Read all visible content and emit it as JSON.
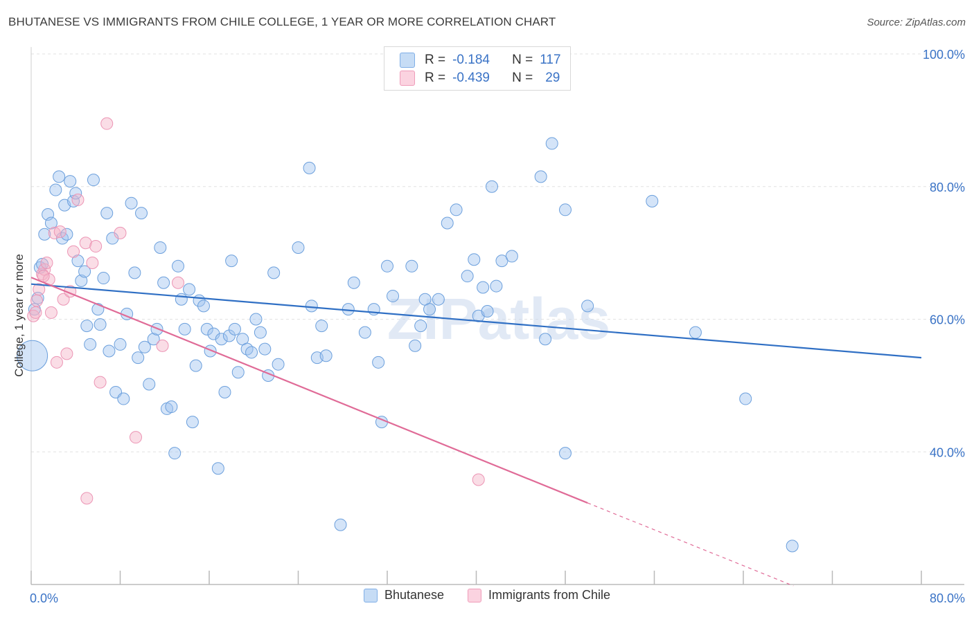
{
  "title": "BHUTANESE VS IMMIGRANTS FROM CHILE COLLEGE, 1 YEAR OR MORE CORRELATION CHART",
  "source": "Source: ZipAtlas.com",
  "watermark": "ZIPatlas",
  "stats": [
    {
      "r_label": "R =",
      "r_value": "-0.184",
      "n_label": "N =",
      "n_value": "117",
      "color": "#9fc3ef"
    },
    {
      "r_label": "R =",
      "r_value": "-0.439",
      "n_label": "N =",
      "n_value": "29",
      "color": "#f5b3c8"
    }
  ],
  "chart_data": {
    "type": "scatter",
    "title": "BHUTANESE VS IMMIGRANTS FROM CHILE COLLEGE, 1 YEAR OR MORE CORRELATION CHART",
    "xlabel": "",
    "ylabel": "College, 1 year or more",
    "xlim": [
      0,
      80
    ],
    "ylim": [
      20,
      100
    ],
    "x_tick_labels": [
      "0.0%",
      "80.0%"
    ],
    "y_ticks": [
      40,
      60,
      80,
      100
    ],
    "y_tick_labels": [
      "40.0%",
      "60.0%",
      "80.0%",
      "100.0%"
    ],
    "grid": true,
    "legend_position": "bottom",
    "series": [
      {
        "name": "Bhutanese",
        "color": "#9fc3ef",
        "line_color": "#2f6fc4",
        "trend": {
          "x": [
            0,
            80
          ],
          "y": [
            65.3,
            54.2
          ]
        },
        "points": [
          [
            0.3,
            61.5
          ],
          [
            0.6,
            63.2
          ],
          [
            0.8,
            67.8
          ],
          [
            1.0,
            68.3
          ],
          [
            1.2,
            72.8
          ],
          [
            1.5,
            75.8
          ],
          [
            1.8,
            74.5
          ],
          [
            2.2,
            79.5
          ],
          [
            2.5,
            81.5
          ],
          [
            2.8,
            72.2
          ],
          [
            3.0,
            77.2
          ],
          [
            3.2,
            72.8
          ],
          [
            3.5,
            80.8
          ],
          [
            3.8,
            77.8
          ],
          [
            4.0,
            79.0
          ],
          [
            4.2,
            68.8
          ],
          [
            4.5,
            65.8
          ],
          [
            4.8,
            67.2
          ],
          [
            5.0,
            59.0
          ],
          [
            5.3,
            56.2
          ],
          [
            5.6,
            81.0
          ],
          [
            6.0,
            61.5
          ],
          [
            6.2,
            59.2
          ],
          [
            6.5,
            66.2
          ],
          [
            6.8,
            76.0
          ],
          [
            7.0,
            55.2
          ],
          [
            7.3,
            72.2
          ],
          [
            7.6,
            49.0
          ],
          [
            8.0,
            56.2
          ],
          [
            8.3,
            48.0
          ],
          [
            8.6,
            60.8
          ],
          [
            9.0,
            77.5
          ],
          [
            9.3,
            67.0
          ],
          [
            9.6,
            54.2
          ],
          [
            9.9,
            76.0
          ],
          [
            10.2,
            55.8
          ],
          [
            10.6,
            50.2
          ],
          [
            11.0,
            57.0
          ],
          [
            11.3,
            58.5
          ],
          [
            11.6,
            70.8
          ],
          [
            11.9,
            65.5
          ],
          [
            12.2,
            46.5
          ],
          [
            12.6,
            46.8
          ],
          [
            12.9,
            39.8
          ],
          [
            13.2,
            68.0
          ],
          [
            13.5,
            63.0
          ],
          [
            13.8,
            58.5
          ],
          [
            14.2,
            64.5
          ],
          [
            14.5,
            44.5
          ],
          [
            14.8,
            53.0
          ],
          [
            15.1,
            62.8
          ],
          [
            15.5,
            62.0
          ],
          [
            15.8,
            58.5
          ],
          [
            16.1,
            55.2
          ],
          [
            16.4,
            57.8
          ],
          [
            16.8,
            37.5
          ],
          [
            17.1,
            57.0
          ],
          [
            17.4,
            49.0
          ],
          [
            17.8,
            57.5
          ],
          [
            18.0,
            68.8
          ],
          [
            18.3,
            58.5
          ],
          [
            18.6,
            52.0
          ],
          [
            19.0,
            57.0
          ],
          [
            19.4,
            55.5
          ],
          [
            19.8,
            55.0
          ],
          [
            20.2,
            60.0
          ],
          [
            20.6,
            58.0
          ],
          [
            21.0,
            55.5
          ],
          [
            21.3,
            51.5
          ],
          [
            21.8,
            67.0
          ],
          [
            22.2,
            53.2
          ],
          [
            24.0,
            70.8
          ],
          [
            25.2,
            62.0
          ],
          [
            25.7,
            54.2
          ],
          [
            26.1,
            59.0
          ],
          [
            26.5,
            54.5
          ],
          [
            27.8,
            29.0
          ],
          [
            28.5,
            61.5
          ],
          [
            29.0,
            65.5
          ],
          [
            30.0,
            58.0
          ],
          [
            30.8,
            61.5
          ],
          [
            31.2,
            53.5
          ],
          [
            31.5,
            44.5
          ],
          [
            32.0,
            68.0
          ],
          [
            32.5,
            63.5
          ],
          [
            34.2,
            68.0
          ],
          [
            34.5,
            56.0
          ],
          [
            35.0,
            59.0
          ],
          [
            35.4,
            63.0
          ],
          [
            35.8,
            61.5
          ],
          [
            36.6,
            63.0
          ],
          [
            37.4,
            74.5
          ],
          [
            38.2,
            76.5
          ],
          [
            39.2,
            66.5
          ],
          [
            39.8,
            69.0
          ],
          [
            40.2,
            60.5
          ],
          [
            40.6,
            64.8
          ],
          [
            41.0,
            61.2
          ],
          [
            41.4,
            80.0
          ],
          [
            41.8,
            65.0
          ],
          [
            42.3,
            68.8
          ],
          [
            43.2,
            69.5
          ],
          [
            45.8,
            81.5
          ],
          [
            46.2,
            57.0
          ],
          [
            46.8,
            86.5
          ],
          [
            48.0,
            76.5
          ],
          [
            48.0,
            39.8
          ],
          [
            50.0,
            62.0
          ],
          [
            55.8,
            77.8
          ],
          [
            59.7,
            58.0
          ],
          [
            64.2,
            48.0
          ],
          [
            68.4,
            25.8
          ],
          [
            25.0,
            82.8
          ],
          [
            0.1,
            54.5
          ]
        ],
        "sizes_note": "largest point at x=0.1,y=54.5"
      },
      {
        "name": "Immigrants from Chile",
        "color": "#f5b3c8",
        "line_color": "#e06b97",
        "trend": {
          "x": [
            0,
            50
          ],
          "y": [
            66.3,
            32.3
          ]
        },
        "trend_dashed_to": {
          "x": 68.5,
          "y": 19.8
        },
        "points": [
          [
            0.2,
            60.5
          ],
          [
            0.4,
            61.0
          ],
          [
            0.7,
            64.5
          ],
          [
            1.0,
            66.8
          ],
          [
            1.2,
            67.5
          ],
          [
            1.4,
            68.5
          ],
          [
            1.6,
            66.0
          ],
          [
            1.8,
            61.0
          ],
          [
            2.1,
            73.0
          ],
          [
            2.3,
            53.5
          ],
          [
            2.6,
            73.2
          ],
          [
            2.9,
            63.0
          ],
          [
            3.2,
            54.8
          ],
          [
            3.5,
            64.2
          ],
          [
            4.2,
            78.0
          ],
          [
            4.9,
            71.5
          ],
          [
            5.5,
            68.5
          ],
          [
            5.8,
            71.0
          ],
          [
            6.2,
            50.5
          ],
          [
            6.8,
            89.5
          ],
          [
            8.0,
            73.0
          ],
          [
            9.4,
            42.2
          ],
          [
            11.8,
            56.0
          ],
          [
            13.2,
            65.5
          ],
          [
            5.0,
            33.0
          ],
          [
            40.2,
            35.8
          ],
          [
            1.1,
            66.5
          ],
          [
            0.5,
            62.8
          ],
          [
            3.8,
            70.2
          ]
        ]
      }
    ]
  }
}
